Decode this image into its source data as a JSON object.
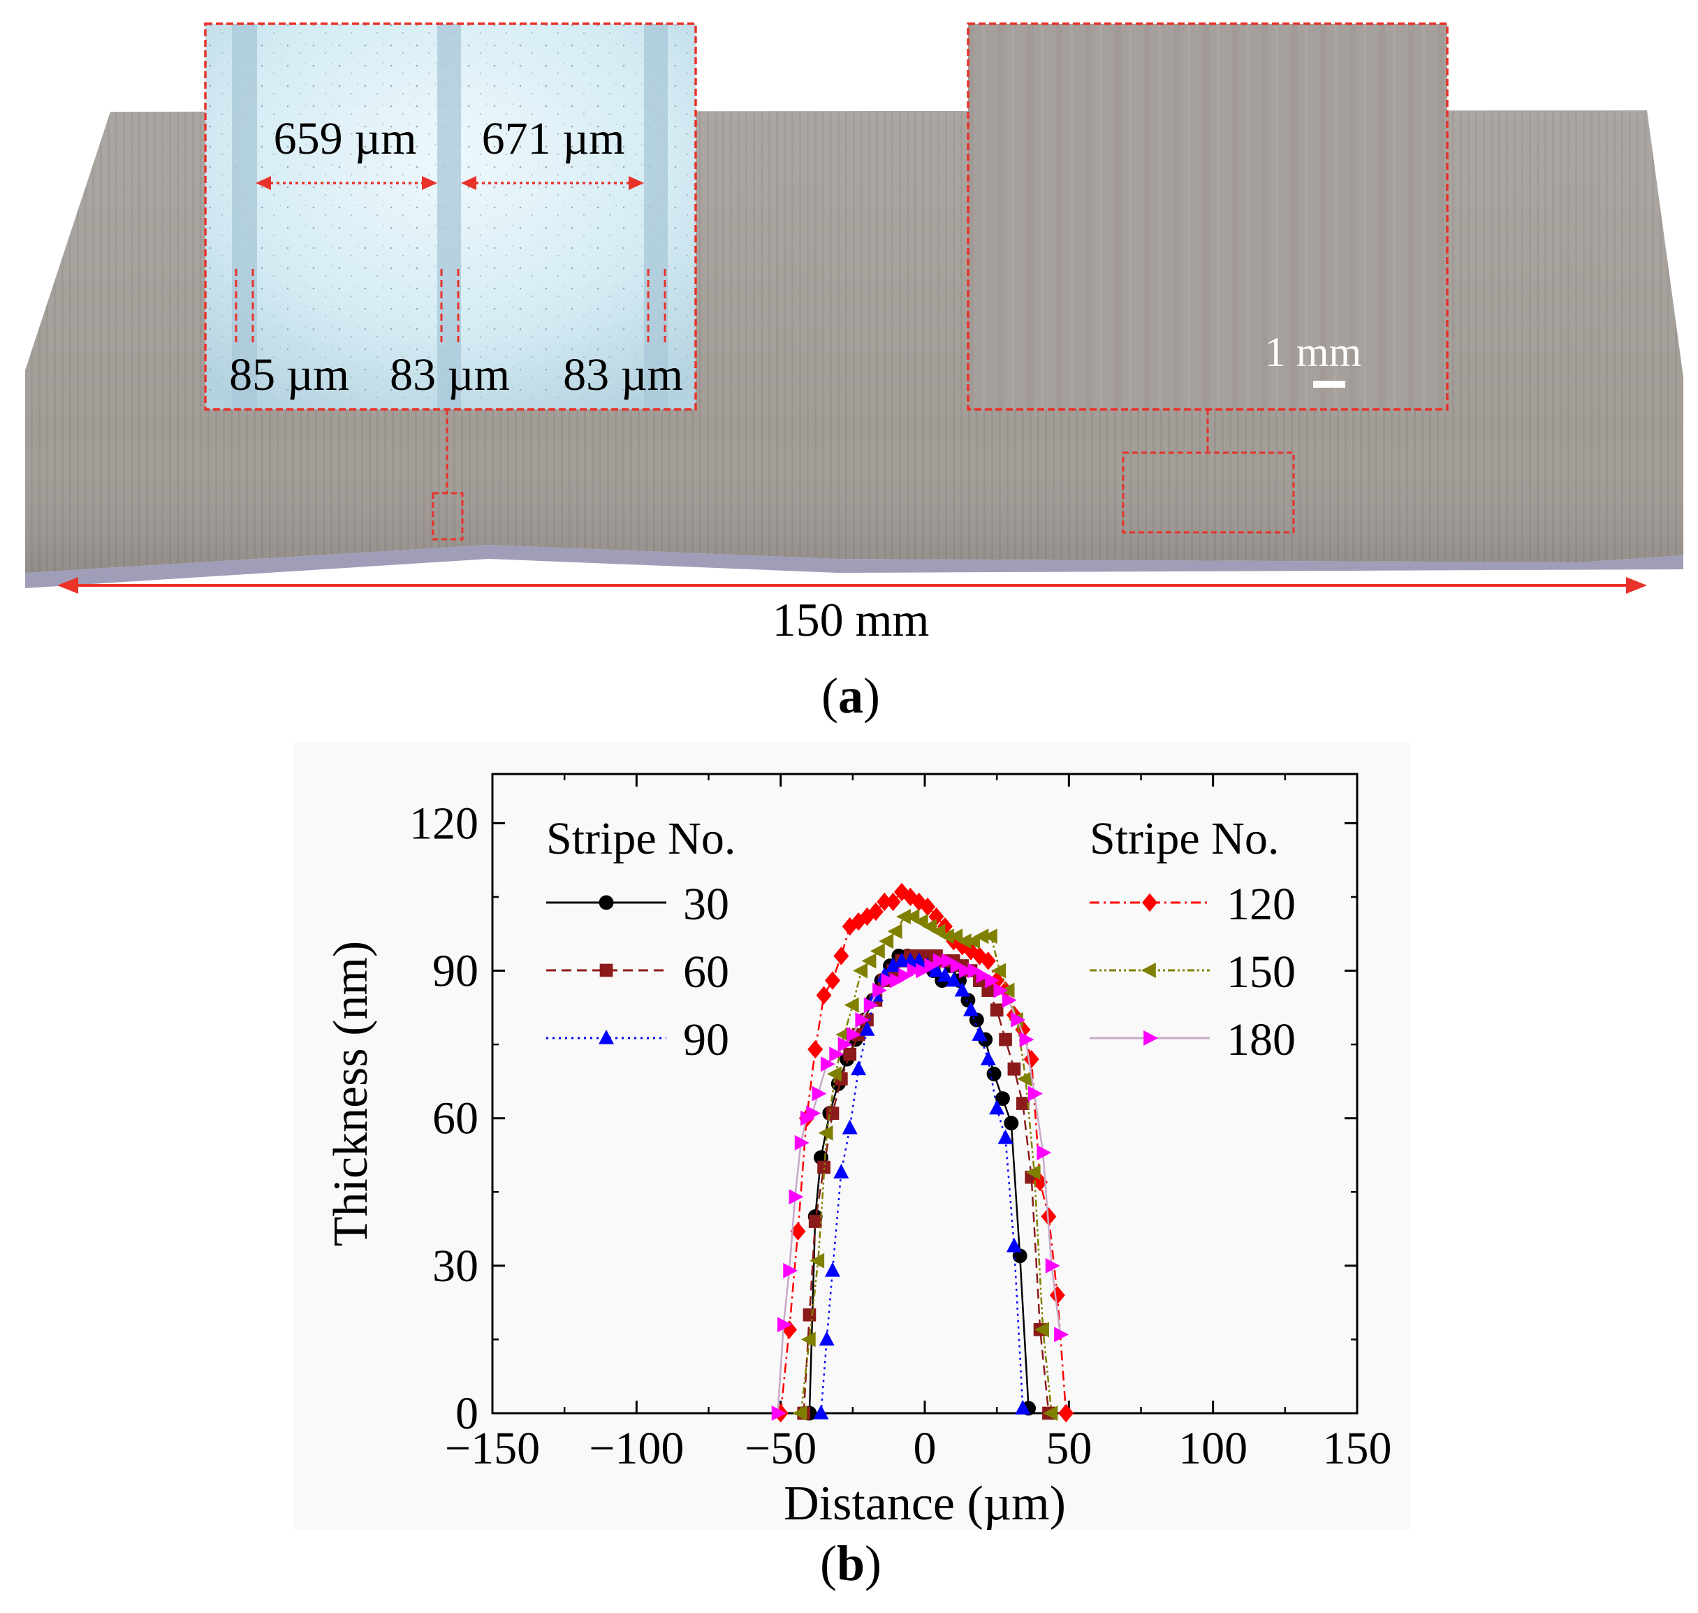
{
  "panel_a": {
    "label": "a",
    "total_length": "150 mm",
    "inset_left": {
      "spacing_1": "659 µm",
      "spacing_2": "671 µm",
      "width_1": "85 µm",
      "width_2": "83 µm",
      "width_3": "83 µm"
    },
    "inset_right": {
      "scale_bar": "1 mm"
    }
  },
  "panel_b": {
    "label": "b"
  },
  "colors": {
    "annotation": "#e8322a",
    "substrate": "#a39d98"
  },
  "chart_data": {
    "type": "scatter",
    "xlabel": "Distance (µm)",
    "ylabel": "Thickness (nm)",
    "xlim": [
      -150,
      150
    ],
    "ylim": [
      0,
      130
    ],
    "xticks": [
      -150,
      -100,
      -50,
      0,
      50,
      100,
      150
    ],
    "yticks": [
      0,
      30,
      60,
      90,
      120
    ],
    "legend_title_left": "Stripe No.",
    "legend_title_right": "Stripe No.",
    "series": [
      {
        "name": "30",
        "color": "#000000",
        "marker": "circle",
        "dash": "",
        "x": [
          -40,
          -38,
          -36,
          -33,
          -30,
          -27,
          -24,
          -21,
          -18,
          -15,
          -12,
          -9,
          -6,
          -3,
          0,
          3,
          6,
          9,
          12,
          15,
          18,
          21,
          24,
          27,
          30,
          33,
          36
        ],
        "y": [
          0,
          40,
          52,
          61,
          67,
          72,
          76,
          80,
          84,
          88,
          91,
          93,
          93,
          92,
          91,
          90,
          88,
          91,
          88,
          84,
          80,
          76,
          69,
          64,
          59,
          32,
          1
        ]
      },
      {
        "name": "60",
        "color": "#8b1a1a",
        "marker": "square",
        "dash": "14,8",
        "x": [
          -42,
          -40,
          -38,
          -35,
          -32,
          -29,
          -26,
          -23,
          -20,
          -17,
          -14,
          -11,
          -8,
          -5,
          -2,
          1,
          4,
          7,
          10,
          13,
          16,
          19,
          22,
          25,
          28,
          31,
          34,
          37,
          40,
          43
        ],
        "y": [
          0,
          20,
          39,
          50,
          61,
          68,
          73,
          77,
          80,
          84,
          88,
          90,
          92,
          93,
          93,
          93,
          93,
          92,
          92,
          91,
          90,
          88,
          86,
          82,
          76,
          70,
          63,
          48,
          17,
          0
        ]
      },
      {
        "name": "90",
        "color": "#0000ff",
        "marker": "triangle-up",
        "dash": "3,6",
        "x": [
          -36,
          -34,
          -32,
          -29,
          -26,
          -23,
          -20,
          -17,
          -14,
          -11,
          -8,
          -5,
          -2,
          1,
          4,
          7,
          10,
          13,
          16,
          19,
          22,
          25,
          28,
          31,
          34
        ],
        "y": [
          0,
          15,
          29,
          49,
          58,
          70,
          78,
          85,
          89,
          91,
          92,
          92,
          92,
          91,
          90,
          89,
          88,
          86,
          82,
          77,
          72,
          62,
          56,
          34,
          1
        ]
      },
      {
        "name": "120",
        "color": "#ff0000",
        "marker": "diamond",
        "dash": "14,6,3,6",
        "x": [
          -50,
          -47,
          -44,
          -41,
          -38,
          -35,
          -32,
          -29,
          -26,
          -23,
          -20,
          -17,
          -14,
          -11,
          -8,
          -5,
          -2,
          1,
          4,
          7,
          10,
          13,
          16,
          19,
          22,
          25,
          28,
          31,
          34,
          37,
          40,
          43,
          46,
          49
        ],
        "y": [
          0,
          17,
          37,
          60,
          74,
          85,
          88,
          93,
          99,
          100,
          101,
          102,
          104,
          104,
          106,
          105,
          104,
          103,
          101,
          99,
          96,
          95,
          94,
          93,
          92,
          88,
          86,
          81,
          78,
          72,
          47,
          40,
          24,
          0
        ]
      },
      {
        "name": "150",
        "color": "#808000",
        "marker": "triangle-left",
        "dash": "10,4,3,4,3,4",
        "x": [
          -43,
          -40,
          -37,
          -34,
          -31,
          -28,
          -25,
          -22,
          -19,
          -16,
          -13,
          -10,
          -7,
          -4,
          -1,
          2,
          5,
          8,
          11,
          14,
          17,
          20,
          23,
          26,
          29,
          32,
          35,
          38,
          41,
          44
        ],
        "y": [
          0,
          15,
          31,
          57,
          69,
          77,
          83,
          90,
          92,
          94,
          96,
          98,
          101,
          101,
          100,
          99,
          98,
          97,
          97,
          96,
          96,
          97,
          97,
          90,
          86,
          80,
          68,
          49,
          17,
          0
        ]
      },
      {
        "name": "180",
        "color": "#ff00ff",
        "marker": "triangle-right",
        "dash": "",
        "x": [
          -51,
          -49,
          -47,
          -45,
          -43,
          -41,
          -39,
          -37,
          -34,
          -31,
          -28,
          -25,
          -22,
          -19,
          -16,
          -13,
          -10,
          -7,
          -4,
          -1,
          2,
          5,
          8,
          11,
          14,
          17,
          20,
          23,
          26,
          29,
          32,
          35,
          38,
          41,
          44,
          47
        ],
        "y": [
          0,
          18,
          29,
          44,
          55,
          60,
          61,
          65,
          71,
          73,
          75,
          77,
          80,
          83,
          86,
          88,
          88,
          89,
          90,
          90,
          91,
          92,
          92,
          91,
          90,
          90,
          89,
          88,
          86,
          84,
          80,
          76,
          65,
          53,
          30,
          16
        ]
      }
    ]
  }
}
